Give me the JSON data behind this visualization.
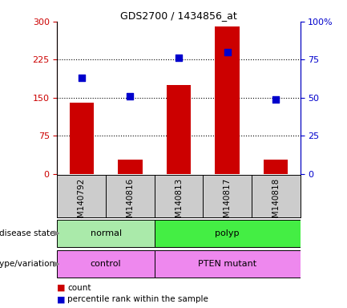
{
  "title": "GDS2700 / 1434856_at",
  "samples": [
    "GSM140792",
    "GSM140816",
    "GSM140813",
    "GSM140817",
    "GSM140818"
  ],
  "counts": [
    140,
    28,
    175,
    290,
    28
  ],
  "percentile_ranks": [
    63,
    51,
    76,
    80,
    49
  ],
  "left_ylim": [
    0,
    300
  ],
  "right_ylim": [
    0,
    100
  ],
  "left_yticks": [
    0,
    75,
    150,
    225,
    300
  ],
  "right_yticks": [
    0,
    25,
    50,
    75,
    100
  ],
  "right_yticklabels": [
    "0",
    "25",
    "50",
    "75",
    "100%"
  ],
  "bar_color": "#cc0000",
  "dot_color": "#0000cc",
  "left_tick_color": "#cc0000",
  "right_tick_color": "#0000cc",
  "disease_state_labels": [
    "normal",
    "polyp"
  ],
  "disease_state_color_normal": "#aaeaaa",
  "disease_state_color_polyp": "#44ee44",
  "genotype_labels": [
    "control",
    "PTEN mutant"
  ],
  "genotype_color": "#ee88ee",
  "annotation_disease_state": "disease state",
  "annotation_genotype": "genotype/variation",
  "legend_count": "count",
  "legend_percentile": "percentile rank within the sample",
  "dotted_line_color": "#000000",
  "bg_color": "#ffffff",
  "xlabel_bg": "#cccccc",
  "bar_width": 0.5,
  "dot_size": 40,
  "hline_values": [
    75,
    150,
    225
  ]
}
